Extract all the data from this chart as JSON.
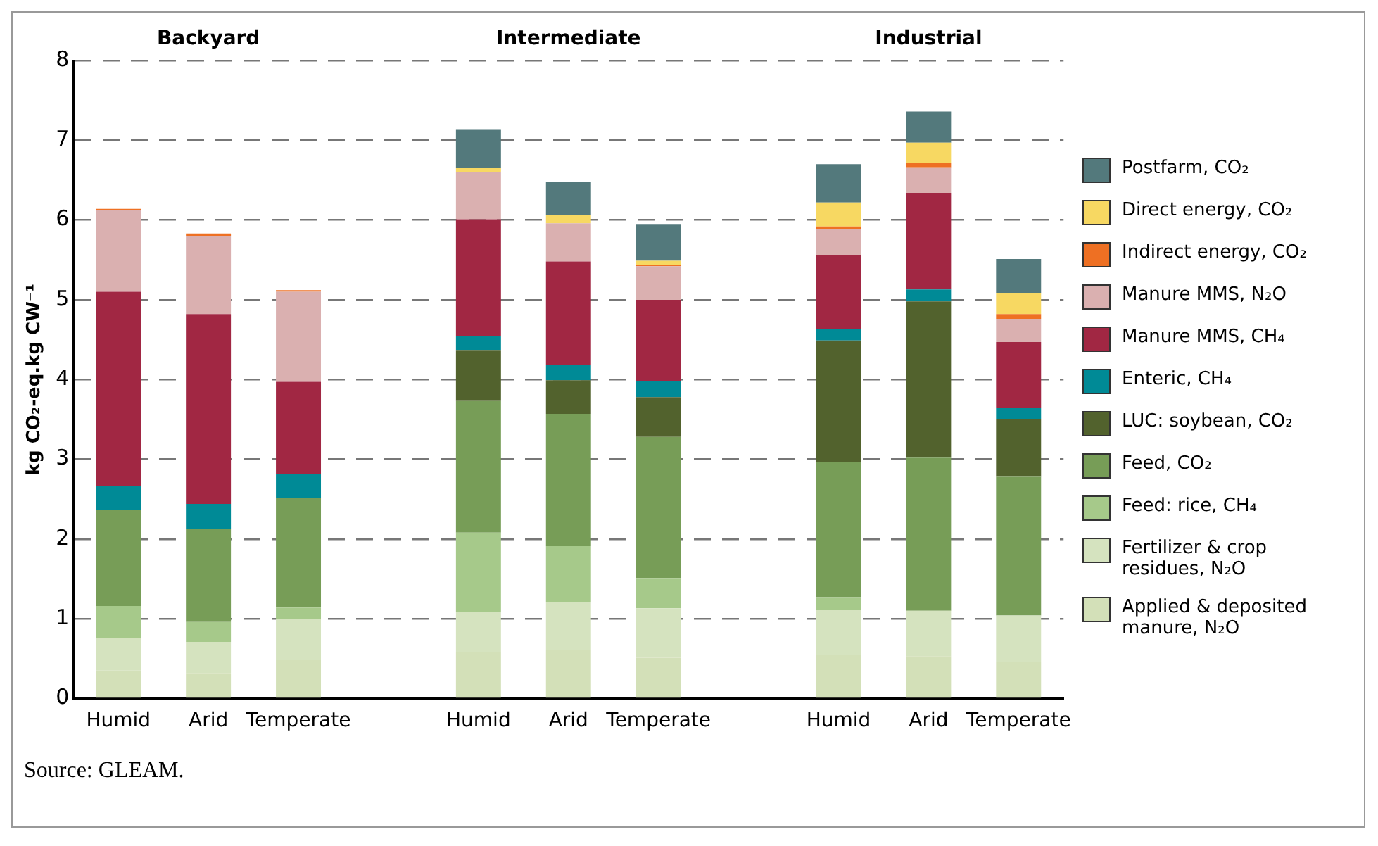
{
  "chart_data": {
    "type": "bar",
    "stacked": true,
    "ylabel": "kg CO₂-eq.kg CW⁻¹",
    "categories": [
      "Humid",
      "Arid",
      "Temperate",
      null,
      "Humid",
      "Arid",
      "Temperate",
      null,
      "Humid",
      "Arid",
      "Temperate"
    ],
    "ylim": [
      0,
      8
    ],
    "yticks": [
      0,
      1,
      2,
      3,
      4,
      5,
      6,
      7,
      8
    ],
    "grid": "y",
    "legend": "right",
    "annotations": [
      "Backyard",
      "Intermediate",
      "Industrial",
      "Source: GLEAM."
    ],
    "series": [
      {
        "name": "Applied & deposited manure, N₂O",
        "color": "#d3e0b8",
        "values": [
          0.35,
          0.32,
          0.48,
          null,
          0.58,
          0.61,
          0.51,
          null,
          0.55,
          0.53,
          0.46
        ]
      },
      {
        "name": "Fertilizer & crop residues, N₂O",
        "color": "#d5e3bf",
        "values": [
          0.41,
          0.39,
          0.52,
          null,
          0.5,
          0.6,
          0.62,
          null,
          0.56,
          0.57,
          0.58
        ]
      },
      {
        "name": "Feed: rice, CH₄",
        "color": "#a6c98a",
        "values": [
          0.4,
          0.25,
          0.14,
          null,
          1.0,
          0.7,
          0.38,
          null,
          0.16,
          0,
          0
        ]
      },
      {
        "name": "Feed, CO₂",
        "color": "#779d57",
        "values": [
          1.2,
          1.17,
          1.37,
          null,
          1.65,
          1.66,
          1.77,
          null,
          1.7,
          1.92,
          1.74
        ]
      },
      {
        "name": "LUC: soybean, CO₂",
        "color": "#52622d",
        "values": [
          0,
          0,
          0,
          null,
          0.64,
          0.42,
          0.5,
          null,
          1.52,
          1.96,
          0.72
        ]
      },
      {
        "name": "Enteric, CH₄",
        "color": "#008a96",
        "values": [
          0.31,
          0.31,
          0.3,
          null,
          0.18,
          0.19,
          0.2,
          null,
          0.14,
          0.15,
          0.14
        ]
      },
      {
        "name": "Manure MMS, CH₄",
        "color": "#a12743",
        "values": [
          2.43,
          2.38,
          1.16,
          null,
          1.46,
          1.3,
          1.02,
          null,
          0.93,
          1.21,
          0.83
        ]
      },
      {
        "name": "Manure MMS, N₂O",
        "color": "#dab0b0",
        "values": [
          1.02,
          0.98,
          1.13,
          null,
          0.59,
          0.48,
          0.42,
          null,
          0.33,
          0.32,
          0.29
        ]
      },
      {
        "name": "Indirect energy, CO₂",
        "color": "#ee7023",
        "values": [
          0.02,
          0.03,
          0.02,
          null,
          0,
          0,
          0.02,
          null,
          0.03,
          0.06,
          0.06
        ]
      },
      {
        "name": "Direct energy, CO₂",
        "color": "#f7d862",
        "values": [
          0,
          0,
          0,
          null,
          0.05,
          0.1,
          0.05,
          null,
          0.3,
          0.25,
          0.26
        ]
      },
      {
        "name": "Postfarm, CO₂",
        "color": "#53797c",
        "values": [
          0,
          0,
          0,
          null,
          0.49,
          0.42,
          0.46,
          null,
          0.48,
          0.39,
          0.43
        ]
      }
    ]
  }
}
